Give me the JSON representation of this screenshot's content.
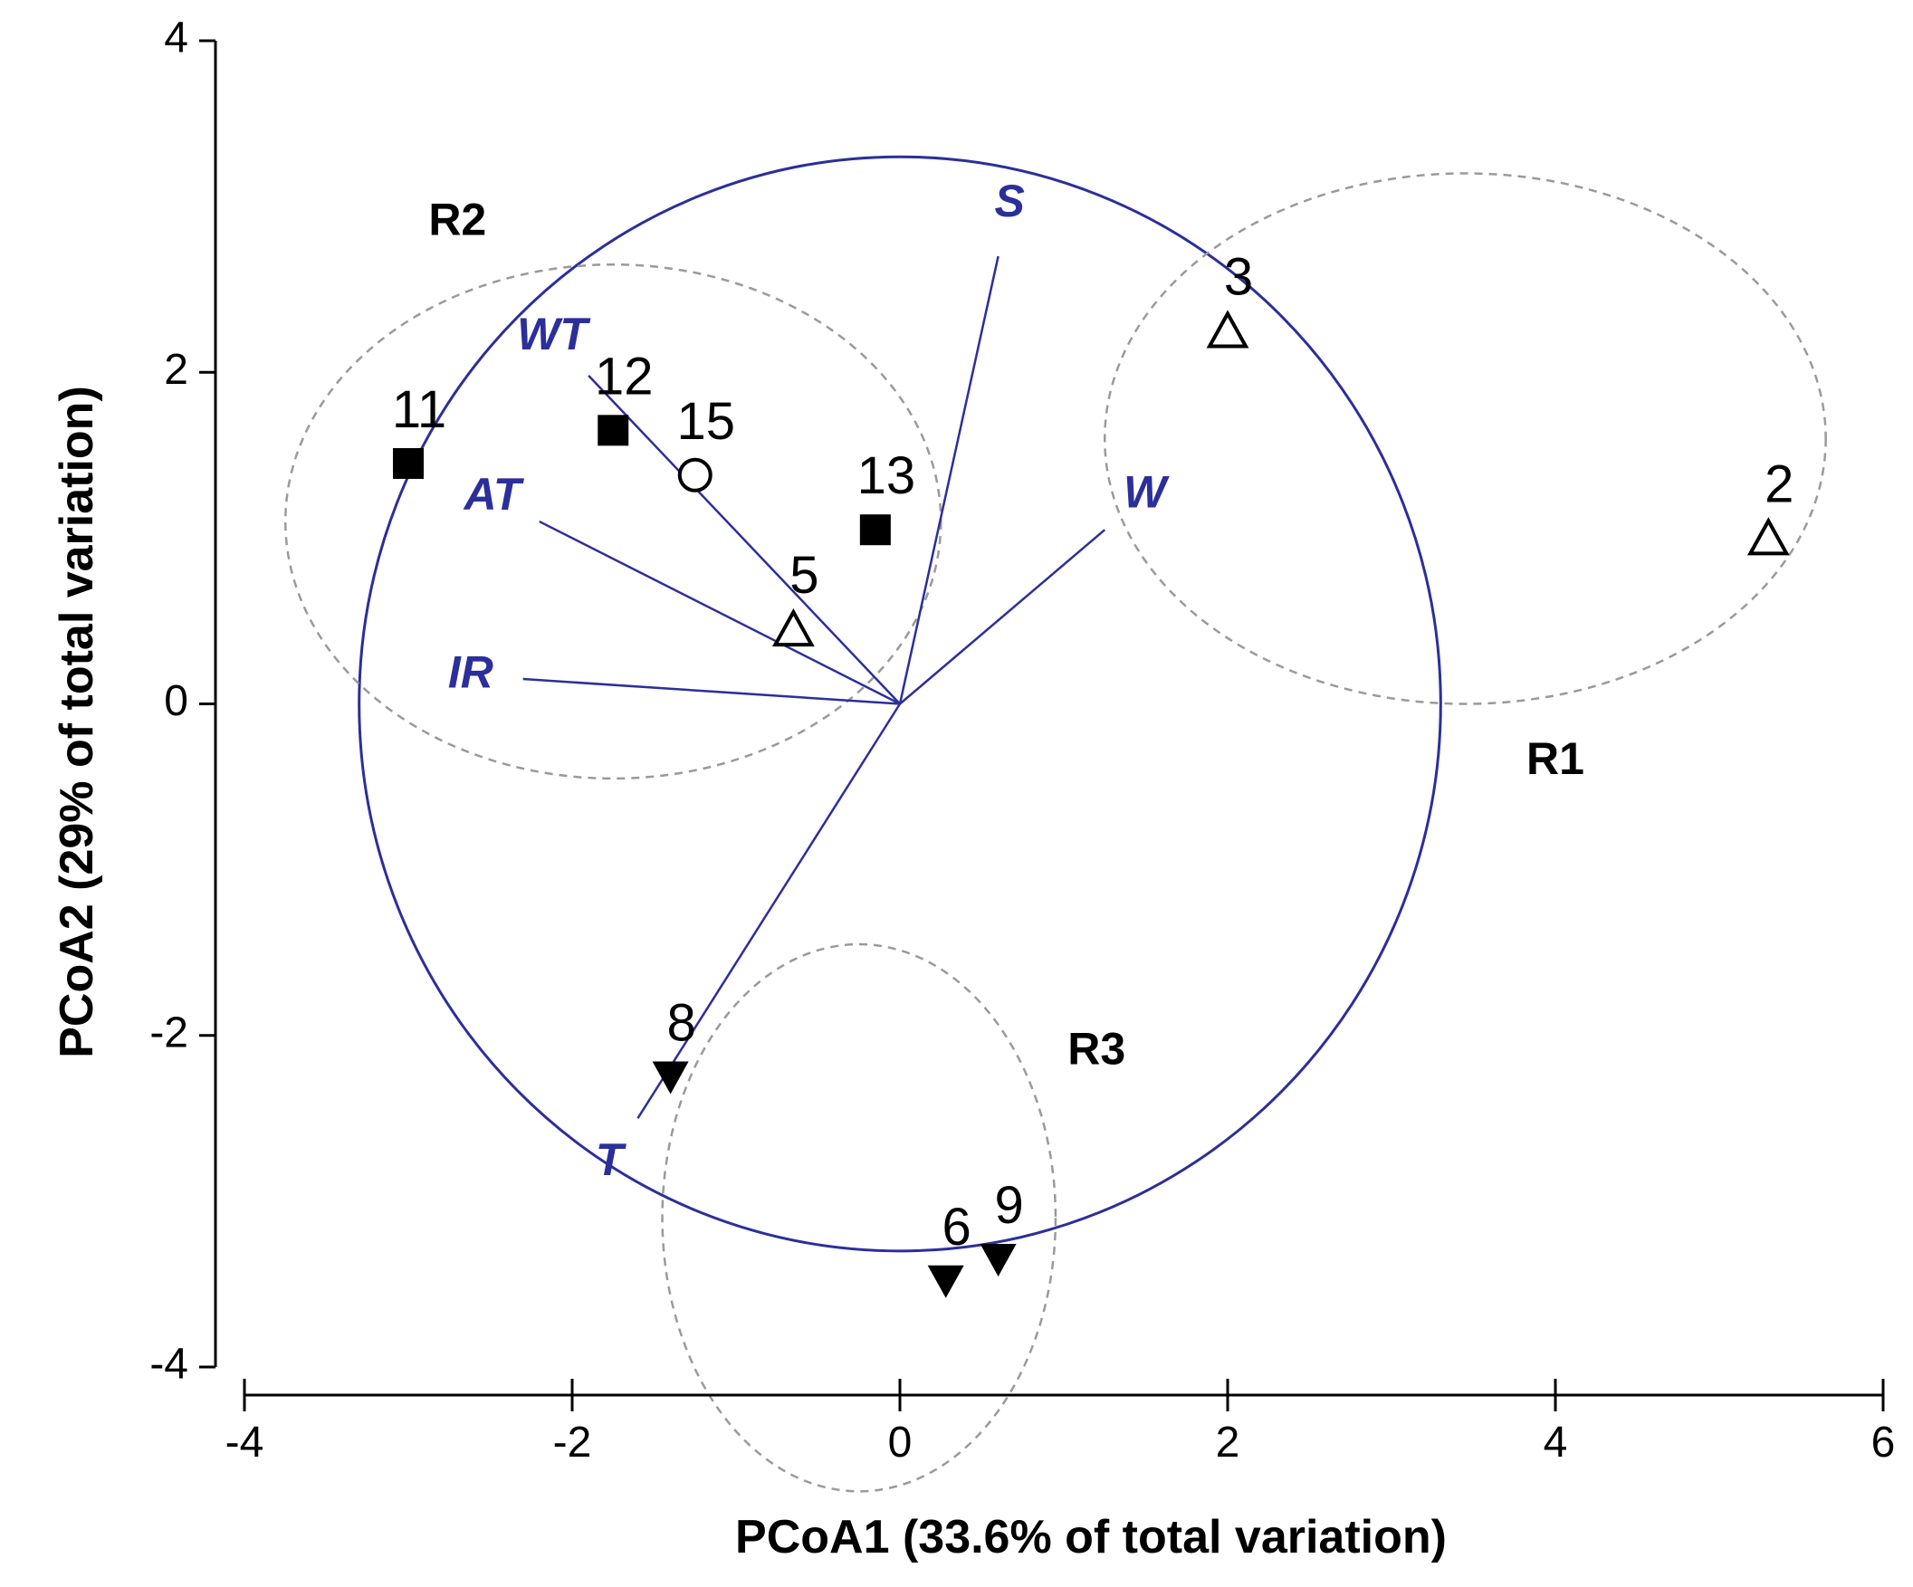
{
  "chart_data": {
    "type": "scatter",
    "xlabel": "PCoA1  (33.6% of total variation)",
    "ylabel": "PCoA2  (29% of total variation)",
    "xlim": [
      -4,
      6
    ],
    "ylim": [
      -4,
      4
    ],
    "xticks": [
      -4,
      -2,
      0,
      2,
      4,
      6
    ],
    "yticks": [
      -4,
      -2,
      0,
      2,
      4
    ],
    "x_tick_labels": [
      "-4",
      "-2",
      "0",
      "2",
      "4",
      "6"
    ],
    "y_tick_labels": [
      "-4",
      "-2",
      "0",
      "2",
      "4"
    ],
    "vector_color": "#2b2f9a",
    "ellipse_color": "#9a9a9a",
    "points": [
      {
        "label": "11",
        "x": -3.0,
        "y": 1.45,
        "marker": "square-filled"
      },
      {
        "label": "12",
        "x": -1.75,
        "y": 1.65,
        "marker": "square-filled"
      },
      {
        "label": "15",
        "x": -1.25,
        "y": 1.38,
        "marker": "circle-open"
      },
      {
        "label": "13",
        "x": -0.15,
        "y": 1.05,
        "marker": "square-filled"
      },
      {
        "label": "5",
        "x": -0.65,
        "y": 0.45,
        "marker": "triangle-up-open"
      },
      {
        "label": "3",
        "x": 2.0,
        "y": 2.25,
        "marker": "triangle-up-open"
      },
      {
        "label": "2",
        "x": 5.3,
        "y": 1.0,
        "marker": "triangle-up-open"
      },
      {
        "label": "8",
        "x": -1.4,
        "y": -2.25,
        "marker": "triangle-down-filled"
      },
      {
        "label": "6",
        "x": 0.28,
        "y": -3.48,
        "marker": "triangle-down-filled"
      },
      {
        "label": "9",
        "x": 0.6,
        "y": -3.35,
        "marker": "triangle-down-filled"
      }
    ],
    "vectors": [
      {
        "label": "S",
        "x": 0.6,
        "y": 2.7
      },
      {
        "label": "WT",
        "x": -1.9,
        "y": 1.98
      },
      {
        "label": "AT",
        "x": -2.2,
        "y": 1.1
      },
      {
        "label": "IR",
        "x": -2.3,
        "y": 0.15
      },
      {
        "label": "W",
        "x": 1.25,
        "y": 1.05
      },
      {
        "label": "T",
        "x": -1.6,
        "y": -2.5
      }
    ],
    "correlation_circle": {
      "cx": 0,
      "cy": 0,
      "r": 3.3
    },
    "groups": [
      {
        "label": "R2",
        "cx": -1.75,
        "cy": 1.1,
        "rx": 2.0,
        "ry": 1.55,
        "label_x": -2.7,
        "label_y": 2.9
      },
      {
        "label": "R1",
        "cx": 3.45,
        "cy": 1.6,
        "rx": 2.2,
        "ry": 1.6,
        "label_x": 4.0,
        "label_y": -0.35
      },
      {
        "label": "R3",
        "cx": -0.25,
        "cy": -3.1,
        "rx": 1.2,
        "ry": 1.65,
        "label_x": 1.2,
        "label_y": -2.1
      }
    ]
  }
}
